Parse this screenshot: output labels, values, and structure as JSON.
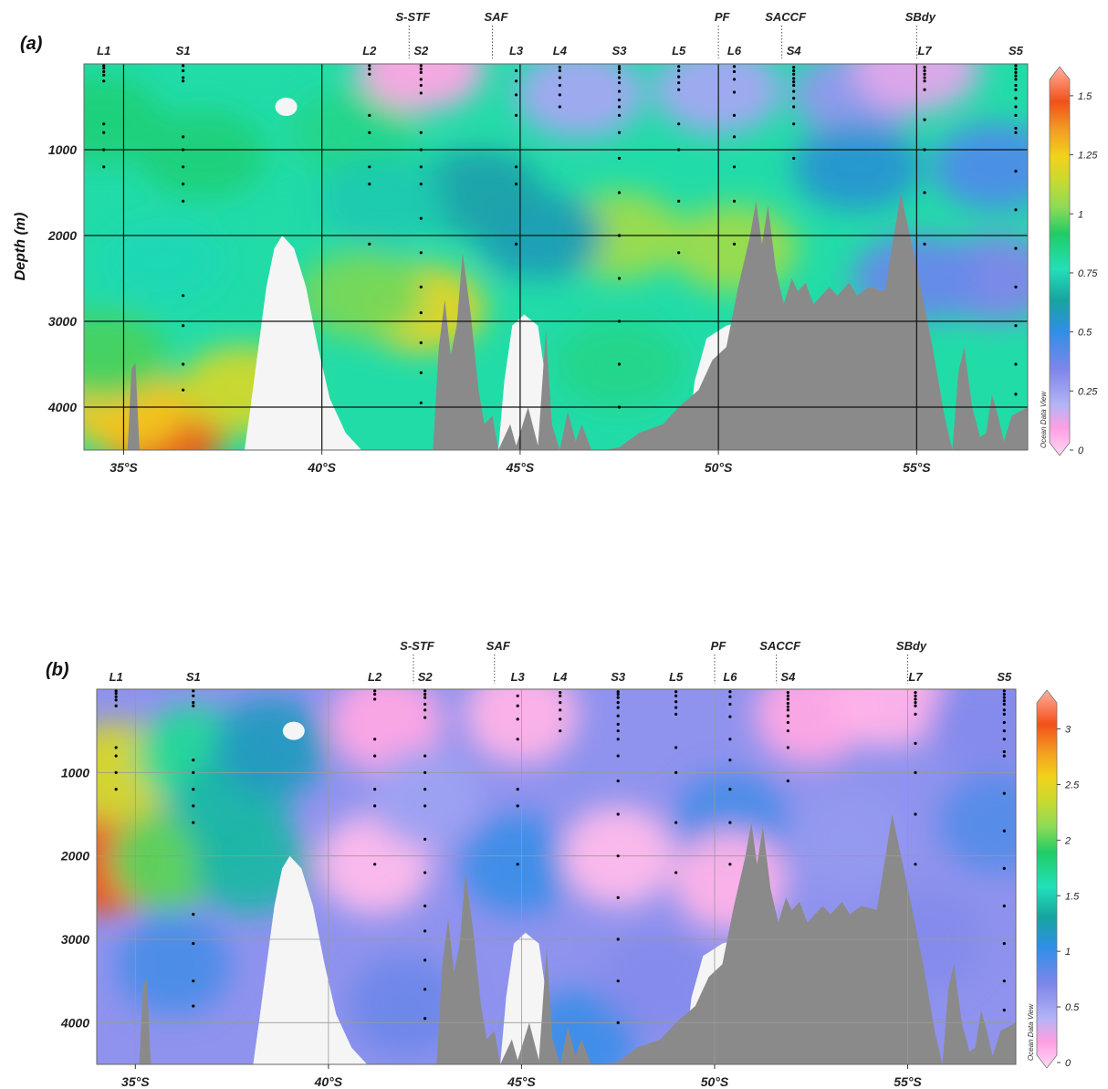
{
  "chart_data": [
    {
      "panel": "(a)",
      "type": "heatmap",
      "ylabel": "Depth (m)",
      "x_ticks": [
        "35°S",
        "40°S",
        "45°S",
        "50°S",
        "55°S"
      ],
      "y_ticks": [
        "1000",
        "2000",
        "3000",
        "4000"
      ],
      "xlim": [
        34.0,
        57.8
      ],
      "ylim": [
        0,
        4500
      ],
      "y_inverted": true,
      "grid": true,
      "colorbar": {
        "min": 0,
        "max": 1.6,
        "ticks": [
          "0",
          "0.25",
          "0.5",
          "0.75",
          "1",
          "1.25",
          "1.5"
        ]
      },
      "watermark": "Ocean Data View",
      "stations": [
        {
          "name": "L1",
          "lat": 34.5
        },
        {
          "name": "S1",
          "lat": 36.5
        },
        {
          "name": "L2",
          "lat": 41.2
        },
        {
          "name": "S2",
          "lat": 42.5
        },
        {
          "name": "L3",
          "lat": 44.9
        },
        {
          "name": "L4",
          "lat": 46.0
        },
        {
          "name": "S3",
          "lat": 47.5
        },
        {
          "name": "L5",
          "lat": 49.0
        },
        {
          "name": "L6",
          "lat": 50.4
        },
        {
          "name": "S4",
          "lat": 51.9
        },
        {
          "name": "L7",
          "lat": 55.2
        },
        {
          "name": "S5",
          "lat": 57.5
        }
      ],
      "fronts": [
        {
          "name": "S-STF",
          "lat": 42.2
        },
        {
          "name": "SAF",
          "lat": 44.3
        },
        {
          "name": "PF",
          "lat": 50.0
        },
        {
          "name": "SACCF",
          "lat": 51.6
        },
        {
          "name": "SBdy",
          "lat": 55.0
        }
      ],
      "field_blobs": [
        {
          "lat": 36.0,
          "depth": 4300,
          "value": 1.45
        },
        {
          "lat": 35.0,
          "depth": 4000,
          "value": 1.25
        },
        {
          "lat": 38.0,
          "depth": 3800,
          "value": 1.15
        },
        {
          "lat": 34.5,
          "depth": 3400,
          "value": 0.95
        },
        {
          "lat": 42.5,
          "depth": 2850,
          "value": 1.2
        },
        {
          "lat": 41.0,
          "depth": 2700,
          "value": 1.0
        },
        {
          "lat": 47.5,
          "depth": 2000,
          "value": 1.05
        },
        {
          "lat": 50.4,
          "depth": 2150,
          "value": 1.05
        },
        {
          "lat": 47.5,
          "depth": 3500,
          "value": 0.85
        },
        {
          "lat": 37.0,
          "depth": 1050,
          "value": 0.88
        },
        {
          "lat": 34.4,
          "depth": 650,
          "value": 0.88
        },
        {
          "lat": 40.8,
          "depth": 800,
          "value": 0.85
        },
        {
          "lat": 36.0,
          "depth": 2300,
          "value": 0.75
        },
        {
          "lat": 45.5,
          "depth": 2000,
          "value": 0.6
        },
        {
          "lat": 46.5,
          "depth": 350,
          "value": 0.25
        },
        {
          "lat": 50.0,
          "depth": 300,
          "value": 0.25
        },
        {
          "lat": 53.5,
          "depth": 350,
          "value": 0.3
        },
        {
          "lat": 42.5,
          "depth": 40,
          "value": 0.1
        },
        {
          "lat": 55.0,
          "depth": 50,
          "value": 0.15
        },
        {
          "lat": 57.0,
          "depth": 2500,
          "value": 0.35
        },
        {
          "lat": 57.0,
          "depth": 1200,
          "value": 0.45
        },
        {
          "lat": 53.5,
          "depth": 1200,
          "value": 0.55
        },
        {
          "lat": 55.0,
          "depth": 2500,
          "value": 0.4
        },
        {
          "lat": 44.0,
          "depth": 1500,
          "value": 0.62
        },
        {
          "lat": 41.5,
          "depth": 1600,
          "value": 0.72
        }
      ]
    },
    {
      "panel": "(b)",
      "type": "heatmap",
      "ylabel": "",
      "x_ticks": [
        "35°S",
        "40°S",
        "45°S",
        "50°S",
        "55°S"
      ],
      "y_ticks": [
        "1000",
        "2000",
        "3000",
        "4000"
      ],
      "xlim": [
        34.0,
        57.8
      ],
      "ylim": [
        0,
        4500
      ],
      "y_inverted": true,
      "grid": true,
      "colorbar": {
        "min": 0,
        "max": 3.3,
        "ticks": [
          "0",
          "0.5",
          "1",
          "1.5",
          "2",
          "2.5",
          "3"
        ]
      },
      "watermark": "Ocean Data View",
      "stations": [
        {
          "name": "L1",
          "lat": 34.5
        },
        {
          "name": "S1",
          "lat": 36.5
        },
        {
          "name": "L2",
          "lat": 41.2
        },
        {
          "name": "S2",
          "lat": 42.5
        },
        {
          "name": "L3",
          "lat": 44.9
        },
        {
          "name": "L4",
          "lat": 46.0
        },
        {
          "name": "S3",
          "lat": 47.5
        },
        {
          "name": "L5",
          "lat": 49.0
        },
        {
          "name": "L6",
          "lat": 50.4
        },
        {
          "name": "S4",
          "lat": 51.9
        },
        {
          "name": "L7",
          "lat": 55.2
        },
        {
          "name": "S5",
          "lat": 57.5
        }
      ],
      "fronts": [
        {
          "name": "S-STF",
          "lat": 42.2
        },
        {
          "name": "SAF",
          "lat": 44.3
        },
        {
          "name": "PF",
          "lat": 50.0
        },
        {
          "name": "SACCF",
          "lat": 51.6
        },
        {
          "name": "SBdy",
          "lat": 55.0
        }
      ],
      "field_blobs": [
        {
          "lat": 34.3,
          "depth": 2100,
          "value": 3.0
        },
        {
          "lat": 34.5,
          "depth": 1000,
          "value": 2.4
        },
        {
          "lat": 35.8,
          "depth": 2050,
          "value": 2.0
        },
        {
          "lat": 36.5,
          "depth": 800,
          "value": 1.7
        },
        {
          "lat": 37.5,
          "depth": 1400,
          "value": 1.4
        },
        {
          "lat": 38.0,
          "depth": 2100,
          "value": 1.4
        },
        {
          "lat": 38.5,
          "depth": 700,
          "value": 1.2
        },
        {
          "lat": 36.0,
          "depth": 3300,
          "value": 0.95
        },
        {
          "lat": 44.9,
          "depth": 2100,
          "value": 1.0
        },
        {
          "lat": 50.4,
          "depth": 1600,
          "value": 0.95
        },
        {
          "lat": 57.3,
          "depth": 1600,
          "value": 0.9
        },
        {
          "lat": 41.2,
          "depth": 2100,
          "value": 0.12
        },
        {
          "lat": 47.5,
          "depth": 2000,
          "value": 0.12
        },
        {
          "lat": 50.4,
          "depth": 2300,
          "value": 0.15
        },
        {
          "lat": 45.0,
          "depth": 300,
          "value": 0.15
        },
        {
          "lat": 41.5,
          "depth": 400,
          "value": 0.2
        },
        {
          "lat": 52.5,
          "depth": 300,
          "value": 0.2
        },
        {
          "lat": 54.5,
          "depth": 100,
          "value": 0.15
        },
        {
          "lat": 46.5,
          "depth": 4200,
          "value": 1.0
        },
        {
          "lat": 42.0,
          "depth": 3800,
          "value": 0.8
        },
        {
          "lat": 53.5,
          "depth": 1800,
          "value": 0.6
        },
        {
          "lat": 48.5,
          "depth": 3500,
          "value": 0.7
        },
        {
          "lat": 55.5,
          "depth": 3000,
          "value": 0.7
        },
        {
          "lat": 57.0,
          "depth": 400,
          "value": 0.7
        },
        {
          "lat": 42.5,
          "depth": 1300,
          "value": 0.55
        }
      ]
    }
  ]
}
